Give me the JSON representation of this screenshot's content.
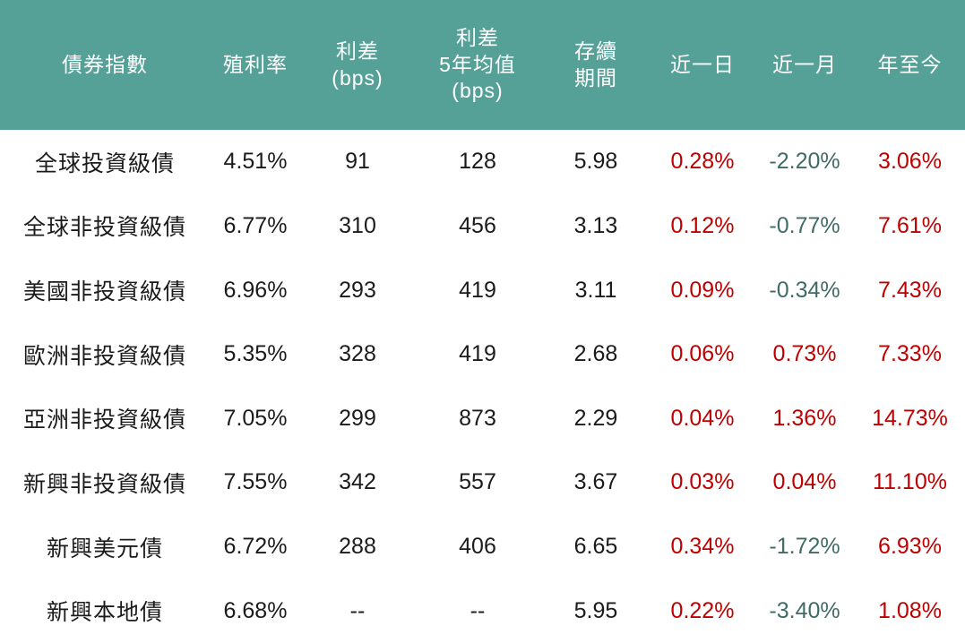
{
  "colors": {
    "header_bg": "#55A097",
    "header_text": "#FFFFFF",
    "body_text": "#1B1B1B",
    "positive": "#C00000",
    "negative": "#3F6B66",
    "page_bg": "#FFFFFF"
  },
  "chart_data": {
    "type": "table",
    "title": "",
    "columns": [
      {
        "key": "index_name",
        "label": "債券指數"
      },
      {
        "key": "yield",
        "label": "殖利率"
      },
      {
        "key": "spread_bps",
        "label": "利差\n(bps)"
      },
      {
        "key": "spread_5y_avg_bps",
        "label": "利差\n5年均值\n(bps)"
      },
      {
        "key": "duration",
        "label": "存續\n期間"
      },
      {
        "key": "return_1d",
        "label": "近一日"
      },
      {
        "key": "return_1m",
        "label": "近一月"
      },
      {
        "key": "return_ytd",
        "label": "年至今"
      }
    ],
    "return_column_indexes": [
      5,
      6,
      7
    ],
    "rows": [
      [
        "全球投資級債",
        "4.51%",
        "91",
        "128",
        "5.98",
        "0.28%",
        "-2.20%",
        "3.06%"
      ],
      [
        "全球非投資級債",
        "6.77%",
        "310",
        "456",
        "3.13",
        "0.12%",
        "-0.77%",
        "7.61%"
      ],
      [
        "美國非投資級債",
        "6.96%",
        "293",
        "419",
        "3.11",
        "0.09%",
        "-0.34%",
        "7.43%"
      ],
      [
        "歐洲非投資級債",
        "5.35%",
        "328",
        "419",
        "2.68",
        "0.06%",
        "0.73%",
        "7.33%"
      ],
      [
        "亞洲非投資級債",
        "7.05%",
        "299",
        "873",
        "2.29",
        "0.04%",
        "1.36%",
        "14.73%"
      ],
      [
        "新興非投資級債",
        "7.55%",
        "342",
        "557",
        "3.67",
        "0.03%",
        "0.04%",
        "11.10%"
      ],
      [
        "新興美元債",
        "6.72%",
        "288",
        "406",
        "6.65",
        "0.34%",
        "-1.72%",
        "6.93%"
      ],
      [
        "新興本地債",
        "6.68%",
        "--",
        "--",
        "5.95",
        "0.22%",
        "-3.40%",
        "1.08%"
      ]
    ]
  }
}
